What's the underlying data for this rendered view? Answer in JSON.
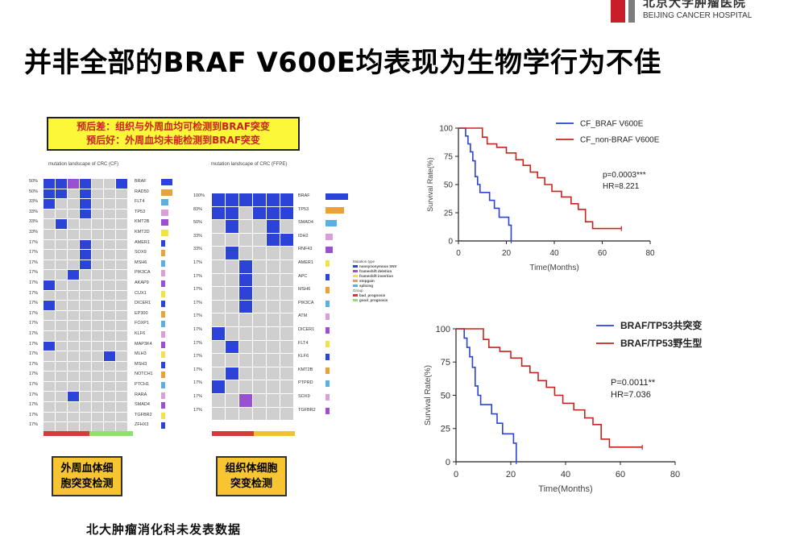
{
  "logo": {
    "cn": "北京大学肿瘤医院",
    "en": "BEIJING CANCER HOSPITAL"
  },
  "title": "并非全部的BRAF V600E均表现为生物学行为不佳",
  "note": {
    "line1": "预后差：组织与外周血均可检测到BRAF突变",
    "line2": "预后好：外周血均未能检测到BRAF突变"
  },
  "heatmap_cf": {
    "title": "mutation landscape of CRC (CF)",
    "genes": [
      "BRAF",
      "RAD50",
      "FLT4",
      "TP53",
      "KMT2B",
      "KMT2D",
      "AMER1",
      "SOX9",
      "MSH6",
      "PIK3CA",
      "AKAP9",
      "CUX1",
      "DICER1",
      "EP300",
      "FOXP1",
      "KLF6",
      "MAP3K4",
      "MLH3",
      "MSH3",
      "NOTCH1",
      "PTCH1",
      "RARA",
      "SMAD4",
      "TGFBR2",
      "ZFHX3"
    ],
    "pcts": [
      "50%",
      "50%",
      "33%",
      "33%",
      "33%",
      "33%",
      "17%",
      "17%",
      "17%",
      "17%",
      "17%",
      "17%",
      "17%",
      "17%",
      "17%",
      "17%",
      "17%",
      "17%",
      "17%",
      "17%",
      "17%",
      "17%",
      "17%",
      "17%",
      "17%"
    ]
  },
  "heatmap_ffpe": {
    "title": "mutation landscape of CRC (FFPE)",
    "genes": [
      "BRAF",
      "TP53",
      "SMAD4",
      "IDH2",
      "RNF43",
      "AMER1",
      "APC",
      "MSH6",
      "PIK3CA",
      "ATM",
      "DICER1",
      "FLT4",
      "KLF6",
      "KMT2B",
      "PTPRD",
      "SOX9",
      "TGFBR2"
    ],
    "pcts": [
      "100%",
      "83%",
      "50%",
      "33%",
      "33%",
      "17%",
      "17%",
      "17%",
      "17%",
      "17%",
      "17%",
      "17%",
      "17%",
      "17%",
      "17%",
      "17%",
      "17%"
    ]
  },
  "legend": {
    "title": "Mutation type",
    "items": [
      "nonsynonymous SNV",
      "frameshift deletion",
      "frameshift insertion",
      "stopgain",
      "splicing"
    ],
    "group_title": "Group",
    "groups": [
      "bad_prognosis",
      "good_prognosis"
    ]
  },
  "box_left": {
    "line1": "外周血体细",
    "line2": "胞突变检测"
  },
  "box_right": {
    "line1": "组织体细胞",
    "line2": "突变检测"
  },
  "footer": "北大肿瘤消化科未发表数据",
  "colors": {
    "blue": "#2c43d8",
    "red": "#c8241e",
    "yellow": "#fdf73a",
    "orange": "#f6c531"
  },
  "chart_data": [
    {
      "type": "line",
      "ylabel": "Survival Rate(%)",
      "xlabel": "Time(Months)",
      "xlim": [
        0,
        80
      ],
      "ylim": [
        0,
        100
      ],
      "xticks": [
        0,
        20,
        40,
        60,
        80
      ],
      "yticks": [
        0,
        25,
        50,
        75,
        100
      ],
      "series": [
        {
          "name": "CF_BRAF V600E",
          "color": "#2c43d8",
          "x": [
            0,
            2,
            3,
            4,
            5,
            6,
            7,
            8,
            9,
            11,
            13,
            15,
            17,
            19,
            21,
            22
          ],
          "y": [
            100,
            100,
            93,
            86,
            79,
            71,
            57,
            50,
            43,
            43,
            36,
            29,
            21,
            21,
            14,
            0
          ]
        },
        {
          "name": "CF_non-BRAF V600E",
          "color": "#c8241e",
          "x": [
            0,
            8,
            10,
            12,
            16,
            20,
            24,
            27,
            30,
            33,
            36,
            39,
            43,
            47,
            50,
            53,
            56,
            62,
            68
          ],
          "y": [
            100,
            100,
            92,
            86,
            83,
            78,
            72,
            67,
            61,
            56,
            50,
            44,
            39,
            33,
            28,
            17,
            11,
            11,
            11
          ]
        }
      ],
      "annotation": {
        "p": "p=0.0003***",
        "hr": "HR=8.221"
      }
    },
    {
      "type": "line",
      "ylabel": "Survival Rate(%)",
      "xlabel": "Time(Months)",
      "xlim": [
        0,
        80
      ],
      "ylim": [
        0,
        100
      ],
      "xticks": [
        0,
        20,
        40,
        60,
        80
      ],
      "yticks": [
        0,
        25,
        50,
        75,
        100
      ],
      "series": [
        {
          "name": "BRAF/TP53共突变",
          "color": "#2c43d8",
          "x": [
            0,
            2,
            3,
            4,
            5,
            6,
            7,
            8,
            9,
            11,
            13,
            15,
            17,
            19,
            21,
            22
          ],
          "y": [
            100,
            100,
            93,
            86,
            79,
            71,
            57,
            50,
            43,
            43,
            36,
            29,
            21,
            21,
            14,
            0
          ]
        },
        {
          "name": "BRAF/TP53野生型",
          "color": "#c8241e",
          "x": [
            0,
            8,
            10,
            12,
            16,
            20,
            24,
            27,
            30,
            33,
            36,
            39,
            43,
            47,
            50,
            53,
            56,
            62,
            68
          ],
          "y": [
            100,
            100,
            92,
            86,
            83,
            78,
            72,
            67,
            61,
            56,
            50,
            44,
            39,
            33,
            28,
            17,
            11,
            11,
            11
          ]
        }
      ],
      "annotation": {
        "p": "P=0.0011**",
        "hr": "HR=7.036"
      }
    }
  ]
}
